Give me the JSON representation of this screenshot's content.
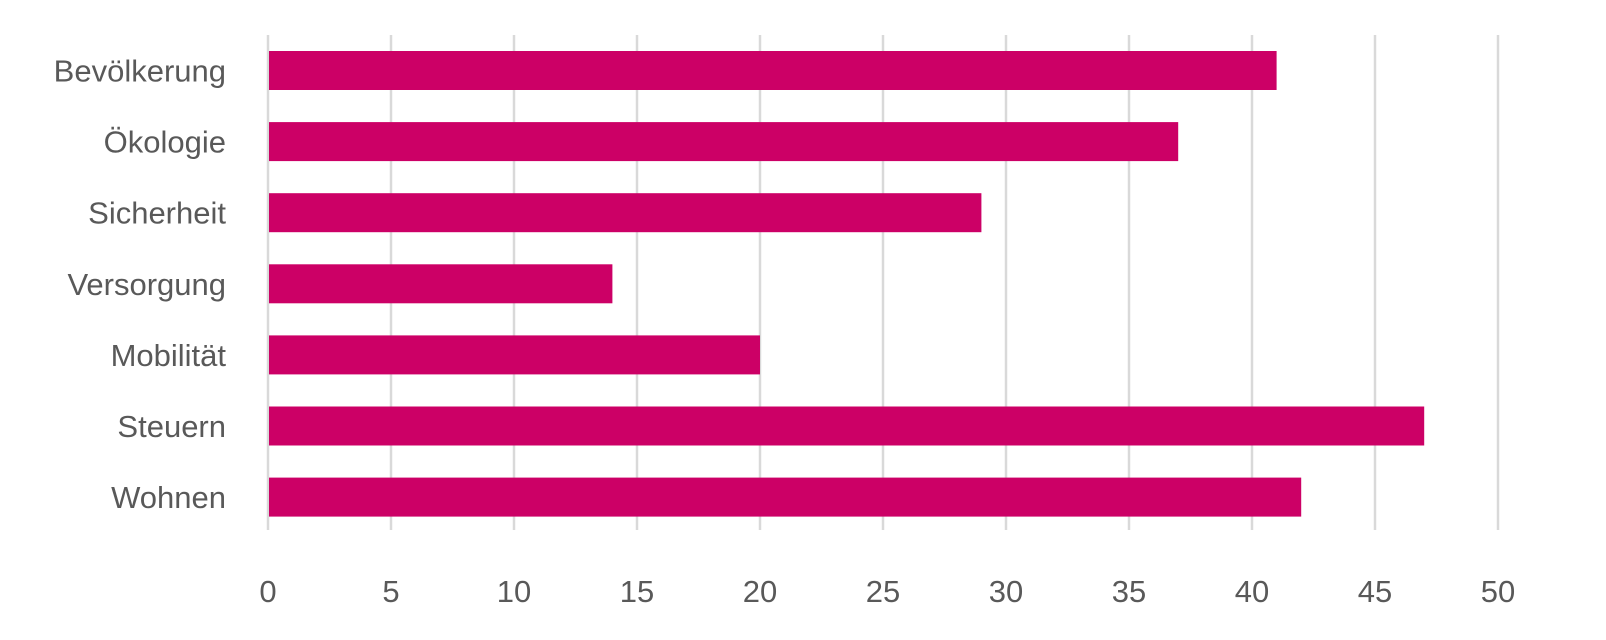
{
  "chart_data": {
    "type": "bar",
    "orientation": "horizontal",
    "title": "",
    "xlabel": "",
    "ylabel": "",
    "categories": [
      "Bevölkerung",
      "Ökologie",
      "Sicherheit",
      "Versorgung",
      "Mobilität",
      "Steuern",
      "Wohnen"
    ],
    "values": [
      41,
      37,
      29,
      14,
      20,
      47,
      42
    ],
    "xlim": [
      0,
      50
    ],
    "xticks": [
      "0",
      "5",
      "10",
      "15",
      "20",
      "25",
      "30",
      "35",
      "40",
      "45",
      "50"
    ],
    "grid": true,
    "legend": "none",
    "colors": {
      "bar": "#CC0066",
      "grid": "#D9D9D9",
      "text": "#595959"
    }
  }
}
